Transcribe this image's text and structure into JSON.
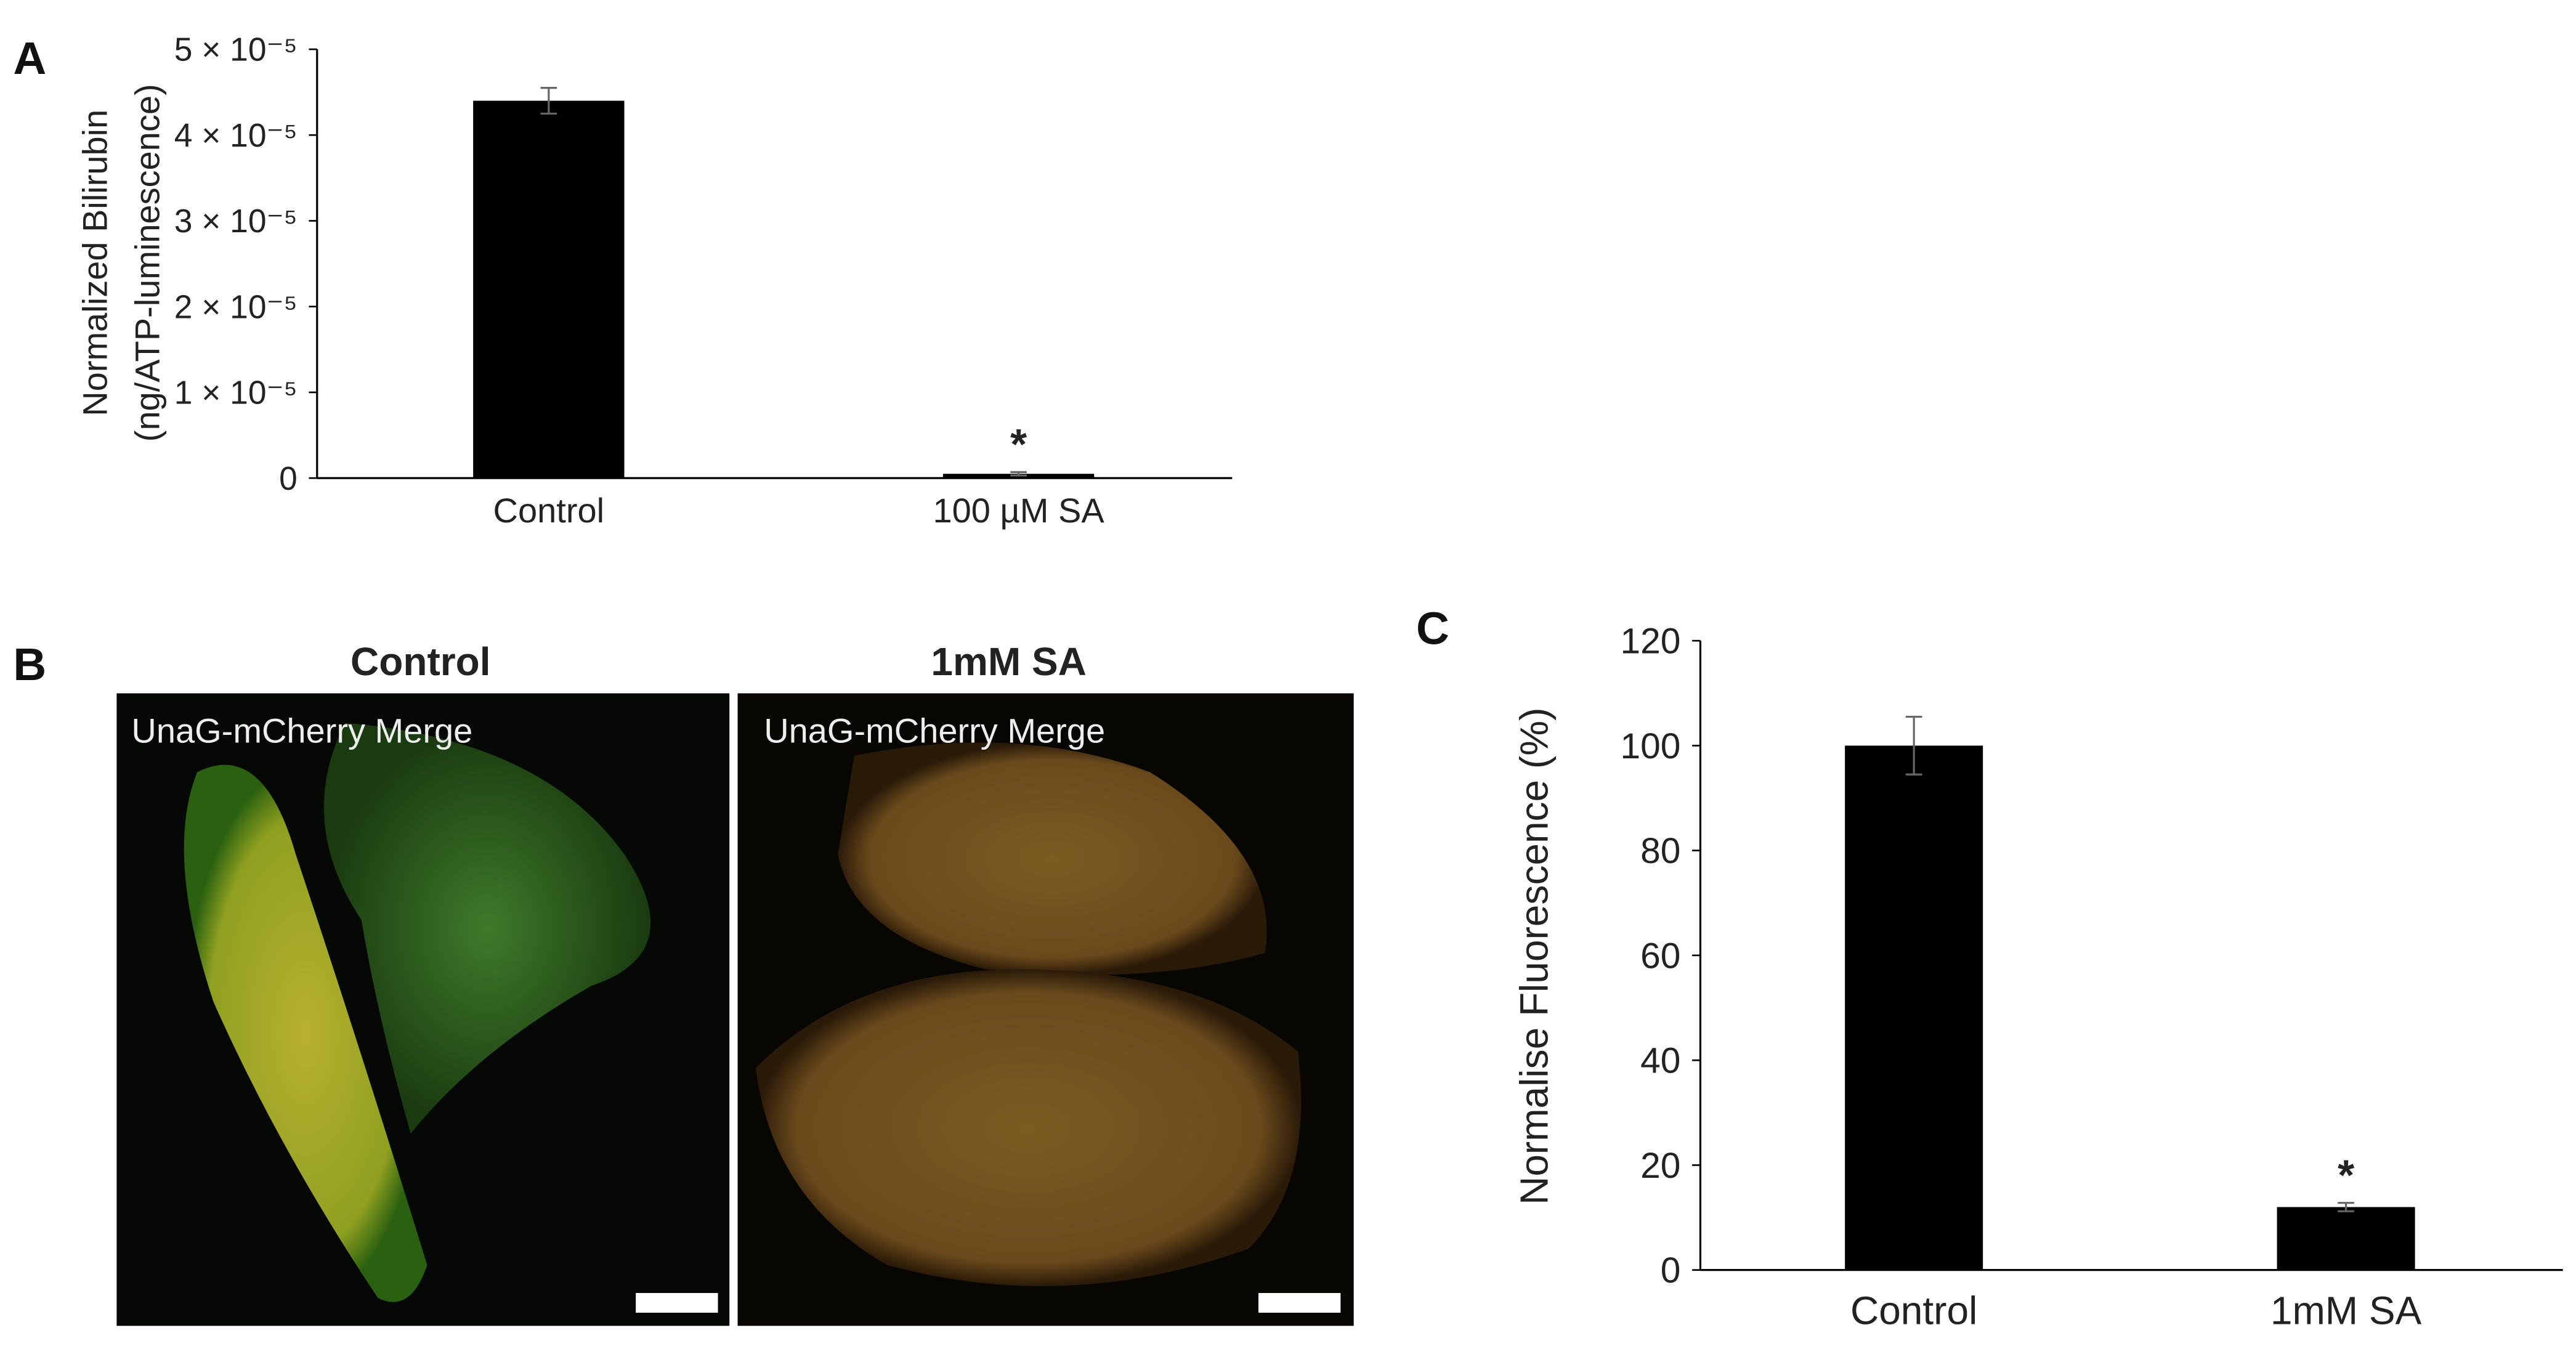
{
  "chart_data": [
    {
      "type": "bar",
      "panel_label": "A",
      "ylabel": [
        "Normalized Bilirubin",
        "(ng/ATP-luminescence)"
      ],
      "categories": [
        "Control",
        "100 µM SA"
      ],
      "values": [
        4.4e-05,
        5e-07
      ],
      "errors": [
        1.5e-06,
        2e-07
      ],
      "significance_labels": [
        null,
        "*"
      ],
      "color": "#000000",
      "ylim": [
        0,
        5e-05
      ],
      "yticks": [
        0,
        {
          "value": 1e-05,
          "label": "1 × 10⁻⁵"
        },
        {
          "value": 2e-05,
          "label": "2 × 10⁻⁵"
        },
        {
          "value": 3e-05,
          "label": "3 × 10⁻⁵"
        },
        {
          "value": 4e-05,
          "label": "4 × 10⁻⁵"
        },
        {
          "value": 5e-05,
          "label": "5 × 10⁻⁵"
        }
      ],
      "grid": false
    },
    {
      "type": "bar",
      "panel_label": "C",
      "ylabel": [
        "Normalise Fluorescence (%)"
      ],
      "categories": [
        "Control",
        "1mM SA"
      ],
      "values": [
        100,
        12
      ],
      "errors": [
        5.5,
        0.8
      ],
      "significance_labels": [
        null,
        "*"
      ],
      "color": "#000000",
      "ylim": [
        0,
        120
      ],
      "yticks": [
        0,
        20,
        40,
        60,
        80,
        100,
        120
      ],
      "grid": false
    }
  ],
  "image_panel": {
    "panel_label": "B",
    "images": [
      {
        "title": "Control",
        "caption": "UnaG-mCherry Merge"
      },
      {
        "title": "1mM SA",
        "caption": "UnaG-mCherry Merge"
      }
    ]
  }
}
